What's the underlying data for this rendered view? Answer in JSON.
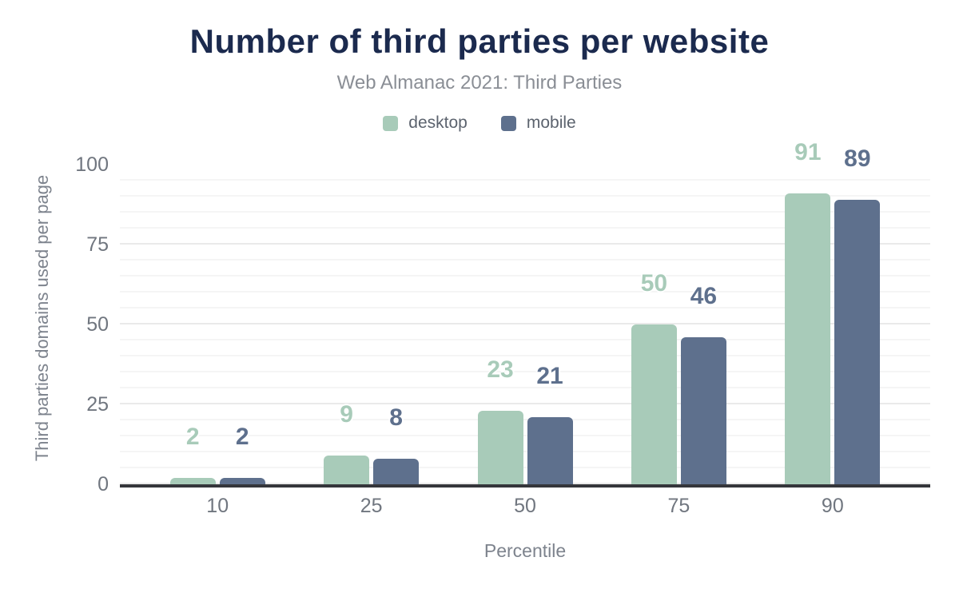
{
  "chart_data": {
    "type": "bar",
    "title": "Number of third parties per website",
    "subtitle": "Web Almanac 2021: Third Parties",
    "categories": [
      "10",
      "25",
      "50",
      "75",
      "90"
    ],
    "series": [
      {
        "name": "desktop",
        "color": "#a8cbb9",
        "values": [
          2,
          9,
          23,
          50,
          91
        ]
      },
      {
        "name": "mobile",
        "color": "#5e708d",
        "values": [
          2,
          8,
          21,
          46,
          89
        ]
      }
    ],
    "xlabel": "Percentile",
    "ylabel": "Third parties domains used per page",
    "ylim": [
      0,
      100
    ],
    "yticks": [
      0,
      25,
      50,
      75,
      100
    ],
    "grid": "horizontal minor lines every 5 units, major every 25",
    "legend_position": "top",
    "data_labels": true
  },
  "colors": {
    "title": "#1b2a4e",
    "subtitle": "#8a8e95",
    "axis_text": "#70767f",
    "axis_line": "#35363b",
    "desktop": "#a8cbb9",
    "mobile": "#5e708d"
  }
}
